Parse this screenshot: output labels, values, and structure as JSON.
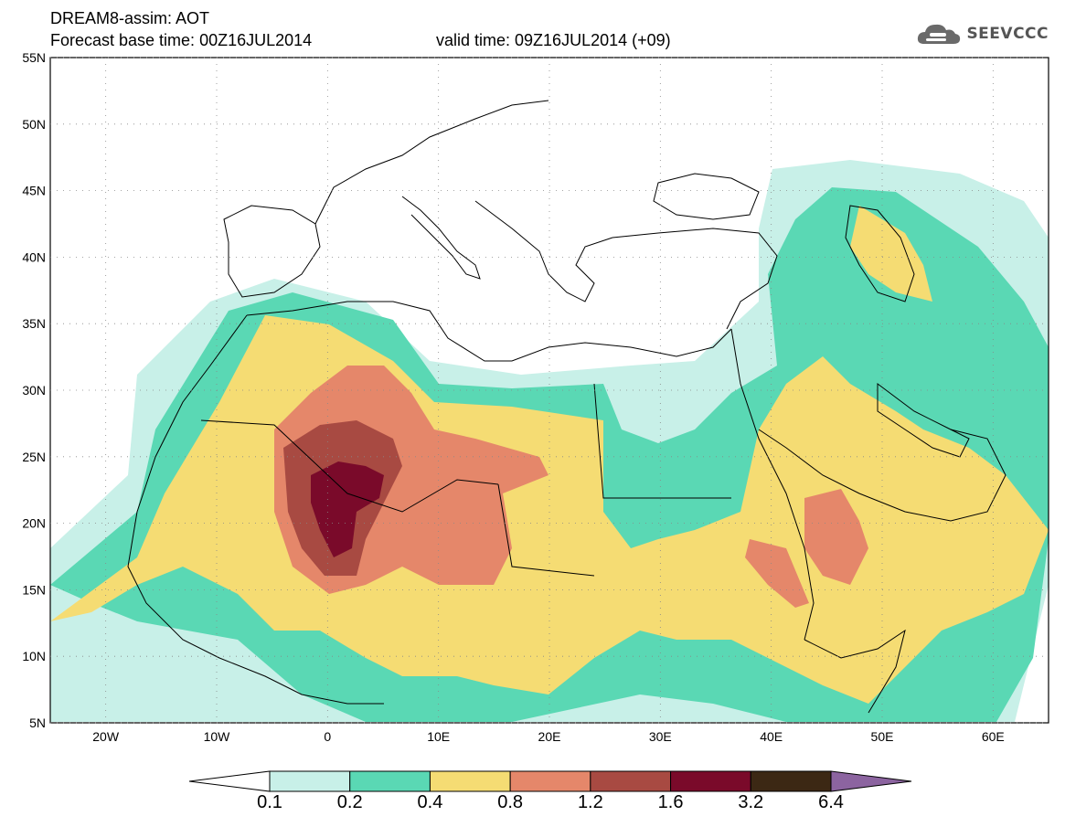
{
  "header": {
    "title_line1": "DREAM8-assim: AOT",
    "title_line2": "Forecast base time: 00Z16JUL2014",
    "valid_time": "valid time: 09Z16JUL2014 (+09)",
    "logo_text": "SEEVCCC",
    "logo_icon": "cloud-icon"
  },
  "map": {
    "lon_range": [
      -25,
      65
    ],
    "lat_range": [
      5,
      55
    ],
    "lat_labels": [
      "5N",
      "10N",
      "15N",
      "20N",
      "25N",
      "30N",
      "35N",
      "40N",
      "45N",
      "50N",
      "55N"
    ],
    "lon_labels": [
      "20W",
      "10W",
      "0",
      "10E",
      "20E",
      "30E",
      "40E",
      "50E",
      "60E"
    ],
    "field": "Aerosol optical thickness (dust)",
    "ocean_color": "#ffffff",
    "border_color": "#000000"
  },
  "colorbar": {
    "labels": [
      "0.1",
      "0.2",
      "0.4",
      "0.8",
      "1.2",
      "1.6",
      "3.2",
      "6.4"
    ],
    "colors": [
      "#ffffff",
      "#c8f0e8",
      "#5ad8b4",
      "#f5dc73",
      "#e5876a",
      "#a84a42",
      "#7a0a2a",
      "#3c2814",
      "#8c64a0"
    ]
  }
}
